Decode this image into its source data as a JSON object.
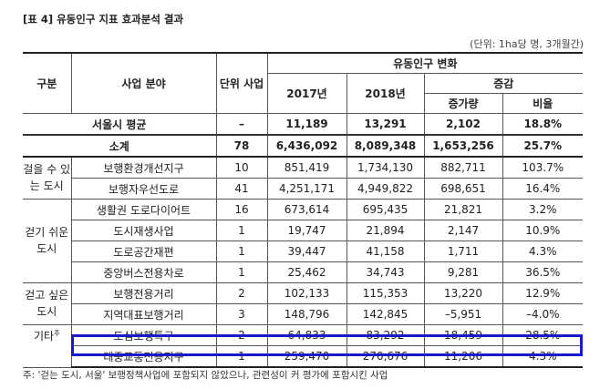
{
  "title": "[표 4] 유동인구 지표 효과분석 결과",
  "unit": "(단위: 1ha당 명, 3개월간)",
  "headers": {
    "group": "구분",
    "field": "사업 분야",
    "count": "단위 사업",
    "change": "유동인구 변화",
    "y2017": "2017년",
    "y2018": "2018년",
    "delta": "증감",
    "increase": "증가량",
    "ratio": "비율"
  },
  "avg": {
    "label": "서울시 평균",
    "count": "–",
    "y2017": "11,189",
    "y2018": "13,291",
    "increase": "2,102",
    "ratio": "18.8%"
  },
  "subtotal": {
    "label": "소계",
    "count": "78",
    "y2017": "6,436,092",
    "y2018": "8,089,348",
    "increase": "1,653,256",
    "ratio": "25.7%"
  },
  "groups": [
    "걸을 수 있는 도시",
    "걷기 쉬운 도시",
    "걷고 싶은 도시",
    "기타"
  ],
  "group_mark": "주",
  "rows": [
    {
      "field": "보행환경개선지구",
      "count": "10",
      "y2017": "851,419",
      "y2018": "1,734,130",
      "increase": "882,711",
      "ratio": "103.7%"
    },
    {
      "field": "보행자우선도로",
      "count": "41",
      "y2017": "4,251,171",
      "y2018": "4,949,822",
      "increase": "698,651",
      "ratio": "16.4%"
    },
    {
      "field": "생활권 도로다이어트",
      "count": "16",
      "y2017": "673,614",
      "y2018": "695,435",
      "increase": "21,821",
      "ratio": "3.2%"
    },
    {
      "field": "도시재생사업",
      "count": "1",
      "y2017": "19,747",
      "y2018": "21,894",
      "increase": "2,147",
      "ratio": "10.9%"
    },
    {
      "field": "도로공간재편",
      "count": "1",
      "y2017": "39,447",
      "y2018": "41,158",
      "increase": "1,711",
      "ratio": "4.3%"
    },
    {
      "field": "중앙버스전용차로",
      "count": "1",
      "y2017": "25,462",
      "y2018": "34,743",
      "increase": "9,281",
      "ratio": "36.5%"
    },
    {
      "field": "보행전용거리",
      "count": "2",
      "y2017": "102,133",
      "y2018": "115,353",
      "increase": "13,220",
      "ratio": "12.9%"
    },
    {
      "field": "지역대표보행거리",
      "count": "3",
      "y2017": "148,796",
      "y2018": "142,845",
      "increase": "–5,951",
      "ratio": "–4.0%"
    },
    {
      "field": "도심보행특구",
      "count": "2",
      "y2017": "64,833",
      "y2018": "83,292",
      "increase": "18,459",
      "ratio": "28.5%"
    },
    {
      "field": "대중교통전용지구",
      "count": "1",
      "y2017": "259,470",
      "y2018": "270,676",
      "increase": "11,206",
      "ratio": "4.3%"
    }
  ],
  "note": "주: '걷는 도시, 서울' 보행정책사업에 포함되지 않았으나, 관련성이 커 평가에 포함시킨 사업",
  "highlight_color": "#1a1ac8"
}
